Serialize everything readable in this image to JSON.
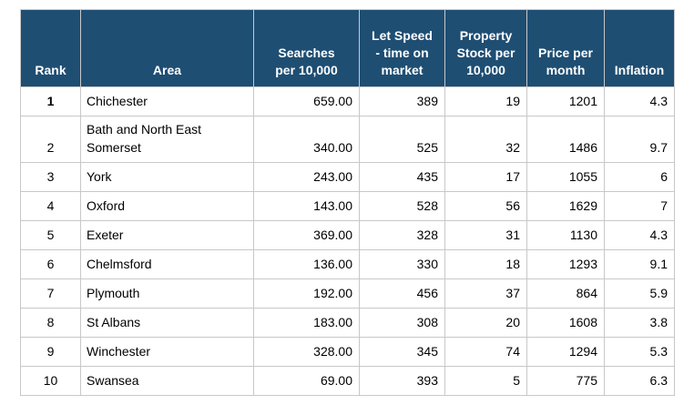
{
  "chart_data": {
    "type": "table",
    "title": "",
    "columns": [
      "Rank",
      "Area",
      "Searches per 10,000",
      "Let Speed - time on market",
      "Property Stock per 10,000",
      "Price per month",
      "Inflation"
    ],
    "rows": [
      [
        1,
        "Chichester",
        659.0,
        389,
        19,
        1201,
        4.3
      ],
      [
        2,
        "Bath and North East Somerset",
        340.0,
        525,
        32,
        1486,
        9.7
      ],
      [
        3,
        "York",
        243.0,
        435,
        17,
        1055,
        6
      ],
      [
        4,
        "Oxford",
        143.0,
        528,
        56,
        1629,
        7
      ],
      [
        5,
        "Exeter",
        369.0,
        328,
        31,
        1130,
        4.3
      ],
      [
        6,
        "Chelmsford",
        136.0,
        330,
        18,
        1293,
        9.1
      ],
      [
        7,
        "Plymouth",
        192.0,
        456,
        37,
        864,
        5.9
      ],
      [
        8,
        "St Albans",
        183.0,
        308,
        20,
        1608,
        3.8
      ],
      [
        9,
        "Winchester",
        328.0,
        345,
        74,
        1294,
        5.3
      ],
      [
        10,
        "Swansea",
        69.0,
        393,
        5,
        775,
        6.3
      ]
    ]
  },
  "table": {
    "header_labels": {
      "rank": "Rank",
      "area": "Area",
      "searches": "Searches\nper 10,000",
      "let_speed": "Let Speed\n- time on\nmarket",
      "stock": "Property\nStock per\n10,000",
      "price": "Price per\nmonth",
      "inflation": "Inflation"
    },
    "rows": [
      {
        "rank": "1",
        "area": "Chichester",
        "searches": "659.00",
        "let_speed": "389",
        "stock": "19",
        "price": "1201",
        "inflation": "4.3",
        "rank_bold": true
      },
      {
        "rank": "2",
        "area": "Bath and North East Somerset",
        "searches": "340.00",
        "let_speed": "525",
        "stock": "32",
        "price": "1486",
        "inflation": "9.7",
        "rank_bold": false
      },
      {
        "rank": "3",
        "area": "York",
        "searches": "243.00",
        "let_speed": "435",
        "stock": "17",
        "price": "1055",
        "inflation": "6",
        "rank_bold": false
      },
      {
        "rank": "4",
        "area": "Oxford",
        "searches": "143.00",
        "let_speed": "528",
        "stock": "56",
        "price": "1629",
        "inflation": "7",
        "rank_bold": false
      },
      {
        "rank": "5",
        "area": "Exeter",
        "searches": "369.00",
        "let_speed": "328",
        "stock": "31",
        "price": "1130",
        "inflation": "4.3",
        "rank_bold": false
      },
      {
        "rank": "6",
        "area": "Chelmsford",
        "searches": "136.00",
        "let_speed": "330",
        "stock": "18",
        "price": "1293",
        "inflation": "9.1",
        "rank_bold": false
      },
      {
        "rank": "7",
        "area": "Plymouth",
        "searches": "192.00",
        "let_speed": "456",
        "stock": "37",
        "price": "864",
        "inflation": "5.9",
        "rank_bold": false
      },
      {
        "rank": "8",
        "area": "St Albans",
        "searches": "183.00",
        "let_speed": "308",
        "stock": "20",
        "price": "1608",
        "inflation": "3.8",
        "rank_bold": false
      },
      {
        "rank": "9",
        "area": "Winchester",
        "searches": "328.00",
        "let_speed": "345",
        "stock": "74",
        "price": "1294",
        "inflation": "5.3",
        "rank_bold": false
      },
      {
        "rank": "10",
        "area": "Swansea",
        "searches": "69.00",
        "let_speed": "393",
        "stock": "5",
        "price": "775",
        "inflation": "6.3",
        "rank_bold": false
      }
    ]
  },
  "colors": {
    "header_bg": "#1f4e73",
    "header_text": "#ffffff",
    "border": "#c8c8c8",
    "body_text": "#000000",
    "page_bg": "#ffffff"
  }
}
